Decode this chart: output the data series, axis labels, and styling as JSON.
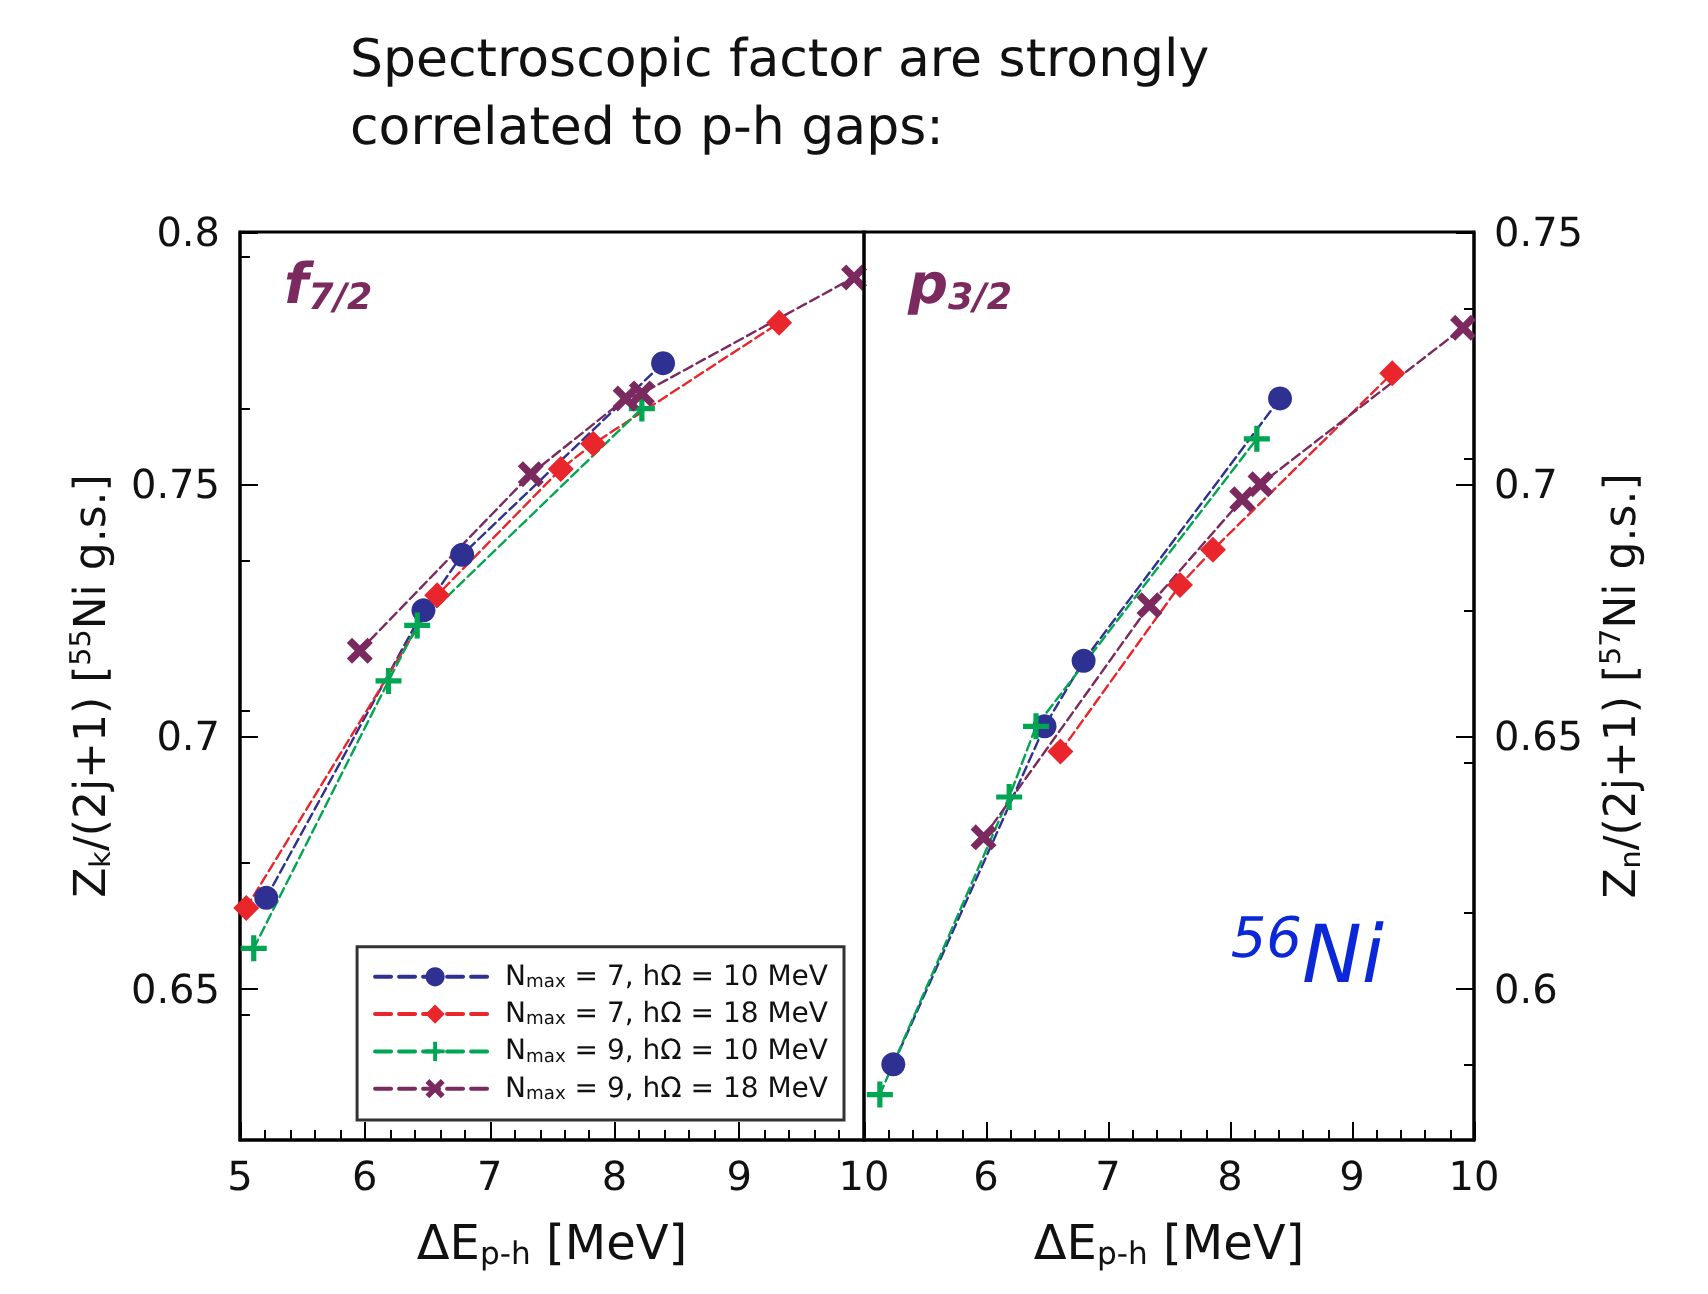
{
  "chart_data": [
    {
      "type": "line",
      "title": "Spectroscopic factor are strongly correlated to p-h gaps:",
      "xlabel": "ΔE$_{p-h}$ [MeV]",
      "ylabel": "Z$_{k}$/(2j+1) [$^{55}$Ni g.s.]",
      "annotations": [
        "f$_{7/2}$"
      ],
      "xlim": [
        5,
        10
      ],
      "xticks": [
        5,
        6,
        7,
        8,
        9,
        10
      ],
      "ylim": [
        0.62,
        0.8
      ],
      "yticks": [
        0.65,
        0.7,
        0.75,
        0.8
      ],
      "legend": "bottom right",
      "line_style": "dashed",
      "grid": false,
      "series": [
        {
          "name": "N$_{max}$ = 7, hΩ = 10 MeV",
          "color": "#2e3192",
          "marker": "circle",
          "x": [
            5.21,
            6.47,
            6.78,
            8.39
          ],
          "values": [
            0.668,
            0.725,
            0.736,
            0.774
          ]
        },
        {
          "name": "N$_{max}$ = 7, hΩ = 18 MeV",
          "color": "#e8262b",
          "marker": "diamond",
          "x": [
            5.05,
            6.58,
            7.57,
            7.83,
            9.32
          ],
          "values": [
            0.666,
            0.728,
            0.753,
            0.758,
            0.782
          ]
        },
        {
          "name": "N$_{max}$ = 9, hΩ = 10 MeV",
          "color": "#00a651",
          "marker": "plus",
          "x": [
            5.11,
            6.19,
            6.42,
            8.22
          ],
          "values": [
            0.658,
            0.711,
            0.722,
            0.765
          ]
        },
        {
          "name": "N$_{max}$ = 9, hΩ = 18 MeV",
          "color": "#7b2a5f",
          "marker": "cross",
          "x": [
            5.96,
            7.33,
            8.09,
            8.22,
            9.92
          ],
          "values": [
            0.717,
            0.752,
            0.767,
            0.768,
            0.791
          ]
        }
      ]
    },
    {
      "type": "line",
      "xlabel": "ΔE$_{p-h}$ [MeV]",
      "ylabel": "Z$_{n}$/(2j+1) [$^{57}$Ni g.s.]",
      "annotations": [
        "p$_{3/2}$",
        "$^{56}$Ni"
      ],
      "xlim": [
        5,
        10
      ],
      "xticks": [
        6,
        7,
        8,
        9,
        10
      ],
      "ylim": [
        0.57,
        0.75
      ],
      "yticks": [
        0.6,
        0.65,
        0.7,
        0.75
      ],
      "line_style": "dashed",
      "grid": false,
      "series": [
        {
          "color": "#2e3192",
          "marker": "circle",
          "x": [
            5.24,
            6.48,
            6.8,
            8.41
          ],
          "values": [
            0.585,
            0.652,
            0.665,
            0.717
          ]
        },
        {
          "color": "#e8262b",
          "marker": "diamond",
          "x": [
            6.61,
            7.59,
            7.86,
            9.33
          ],
          "values": [
            0.647,
            0.68,
            0.687,
            0.722
          ]
        },
        {
          "color": "#00a651",
          "marker": "plus",
          "x": [
            5.13,
            6.19,
            6.41,
            8.22
          ],
          "values": [
            0.579,
            0.638,
            0.652,
            0.709
          ]
        },
        {
          "color": "#7b2a5f",
          "marker": "cross",
          "x": [
            5.98,
            7.34,
            8.1,
            8.25,
            9.91
          ],
          "values": [
            0.63,
            0.676,
            0.697,
            0.7,
            0.731
          ]
        }
      ]
    }
  ]
}
